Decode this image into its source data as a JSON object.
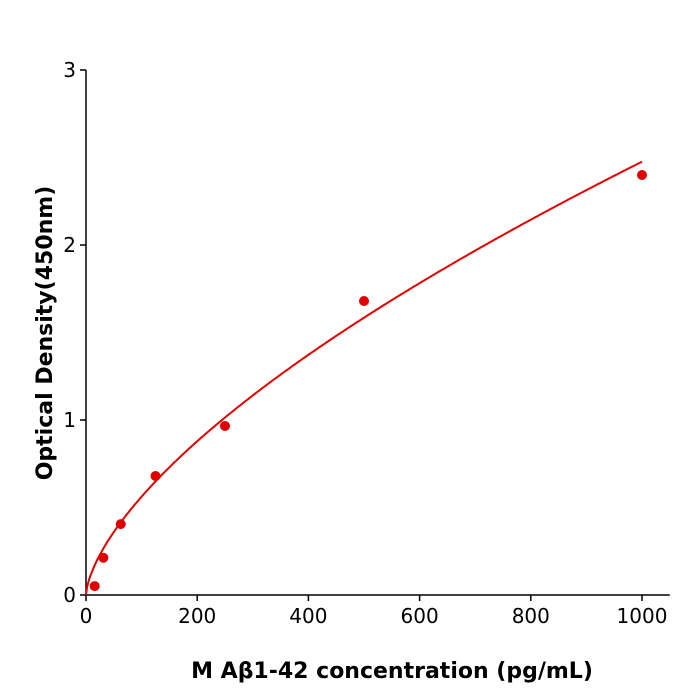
{
  "chart_data": {
    "type": "scatter",
    "xlabel": "M  Aβ1-42 concentration (pg/mL)",
    "ylabel": "Optical Density(450nm)",
    "xlim": [
      0,
      1050
    ],
    "ylim": [
      0,
      3
    ],
    "xticks": [
      "0",
      "200",
      "400",
      "600",
      "800",
      "1000"
    ],
    "yticks": [
      "0",
      "1",
      "2",
      "3"
    ],
    "grid": false,
    "color": "#e00000",
    "series": [
      {
        "x": [
          15.625,
          31.25,
          62.5,
          125,
          250,
          500,
          1000
        ],
        "y": [
          0.051,
          0.213,
          0.405,
          0.68,
          0.966,
          1.68,
          2.4
        ],
        "fit": "curve"
      }
    ]
  }
}
